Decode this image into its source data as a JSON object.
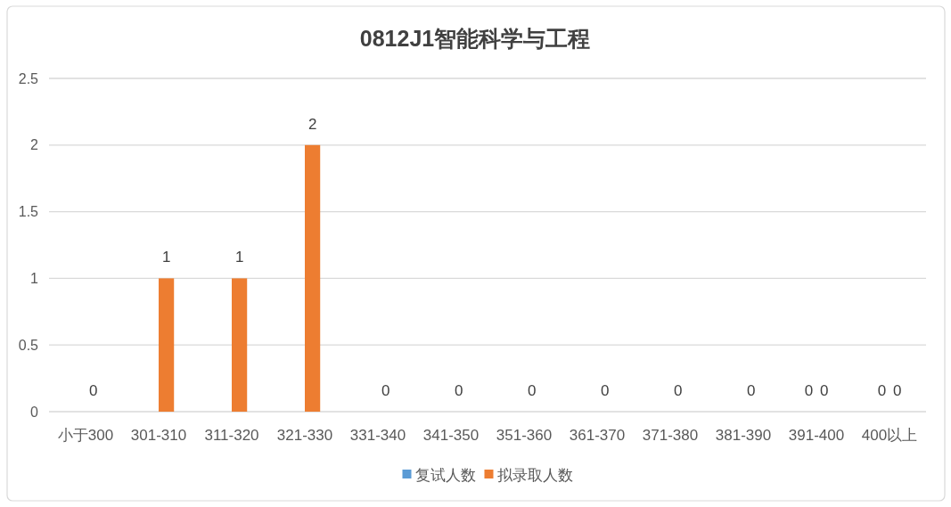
{
  "chart_data": {
    "type": "bar",
    "title": "0812J1智能科学与工程",
    "categories": [
      "小于300",
      "301-310",
      "311-320",
      "321-330",
      "331-340",
      "341-350",
      "351-360",
      "361-370",
      "371-380",
      "381-390",
      "391-400",
      "400以上"
    ],
    "series": [
      {
        "name": "复试人数",
        "color": "#5b9bd5",
        "values": [
          null,
          null,
          null,
          null,
          null,
          null,
          null,
          null,
          null,
          null,
          0,
          0
        ]
      },
      {
        "name": "拟录取人数",
        "color": "#ed7d31",
        "values": [
          0,
          1,
          1,
          2,
          0,
          0,
          0,
          0,
          0,
          0,
          0,
          0
        ]
      }
    ],
    "ylim": [
      0,
      2.5
    ],
    "yticks": [
      0,
      0.5,
      1,
      1.5,
      2,
      2.5
    ],
    "grid": "y",
    "legend": "bottom",
    "data_labels": true
  }
}
